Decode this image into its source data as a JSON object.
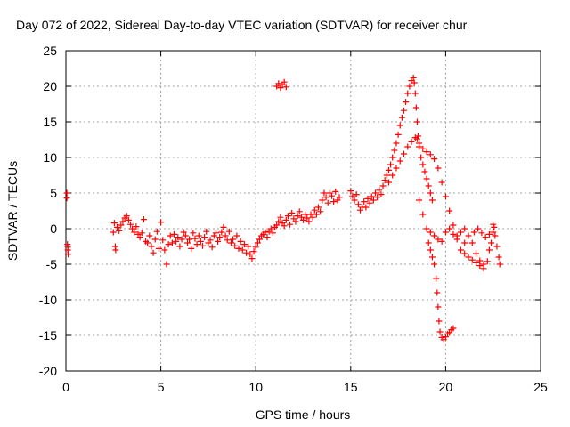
{
  "chart_data": {
    "type": "scatter",
    "title": "Day 072 of 2022, Sidereal Day-to-day VTEC variation (SDTVAR) for receiver chur",
    "xlabel": "GPS time / hours",
    "ylabel": "SDTVAR / TECUs",
    "xlim": [
      0,
      25
    ],
    "ylim": [
      -20,
      25
    ],
    "xticks": [
      0,
      5,
      10,
      15,
      20,
      25
    ],
    "yticks": [
      -20,
      -15,
      -10,
      -5,
      0,
      5,
      10,
      15,
      20,
      25
    ],
    "xtick_labels": [
      "0",
      "5",
      "10",
      "15",
      "20",
      "25"
    ],
    "ytick_labels": [
      "-20",
      "-15",
      "-10",
      "-5",
      "0",
      "5",
      "10",
      "15",
      "20",
      "25"
    ],
    "grid": true,
    "marker": "+",
    "color": "#ff0000",
    "series": [
      {
        "name": "SDTVAR",
        "points": [
          [
            0.05,
            5.0
          ],
          [
            0.05,
            4.3
          ],
          [
            0.08,
            -2.2
          ],
          [
            0.1,
            -3.0
          ],
          [
            0.12,
            -3.6
          ],
          [
            0.1,
            -2.6
          ],
          [
            2.5,
            -0.5
          ],
          [
            2.55,
            0.8
          ],
          [
            2.6,
            -2.5
          ],
          [
            2.62,
            -3.0
          ],
          [
            2.7,
            0.2
          ],
          [
            2.8,
            -0.3
          ],
          [
            2.9,
            0.5
          ],
          [
            3.0,
            1.0
          ],
          [
            3.1,
            1.5
          ],
          [
            3.2,
            1.8
          ],
          [
            3.3,
            1.2
          ],
          [
            3.4,
            0.6
          ],
          [
            3.5,
            0.0
          ],
          [
            3.6,
            -0.5
          ],
          [
            3.7,
            0.3
          ],
          [
            3.8,
            -0.8
          ],
          [
            3.9,
            -1.2
          ],
          [
            4.0,
            -0.6
          ],
          [
            4.1,
            1.3
          ],
          [
            4.2,
            -1.8
          ],
          [
            4.3,
            -2.0
          ],
          [
            4.4,
            -1.0
          ],
          [
            4.5,
            -2.5
          ],
          [
            4.6,
            -3.4
          ],
          [
            4.7,
            -1.5
          ],
          [
            4.8,
            -0.4
          ],
          [
            4.9,
            -2.8
          ],
          [
            5.0,
            0.9
          ],
          [
            5.1,
            -1.6
          ],
          [
            5.2,
            -3.0
          ],
          [
            5.3,
            -5.0
          ],
          [
            5.4,
            -2.2
          ],
          [
            5.5,
            -1.0
          ],
          [
            5.6,
            -2.0
          ],
          [
            5.7,
            -0.8
          ],
          [
            5.8,
            -1.8
          ],
          [
            5.9,
            -1.2
          ],
          [
            6.0,
            -2.5
          ],
          [
            6.1,
            -1.5
          ],
          [
            6.2,
            -0.5
          ],
          [
            6.3,
            -1.0
          ],
          [
            6.4,
            -2.0
          ],
          [
            6.5,
            -1.5
          ],
          [
            6.6,
            -2.8
          ],
          [
            6.7,
            -0.6
          ],
          [
            6.8,
            -1.4
          ],
          [
            6.9,
            -2.2
          ],
          [
            7.0,
            -1.0
          ],
          [
            7.1,
            -1.8
          ],
          [
            7.2,
            -2.4
          ],
          [
            7.3,
            -1.2
          ],
          [
            7.4,
            -0.4
          ],
          [
            7.5,
            -2.0
          ],
          [
            7.6,
            -1.6
          ],
          [
            7.7,
            -2.6
          ],
          [
            7.8,
            -1.0
          ],
          [
            7.9,
            -0.6
          ],
          [
            8.0,
            -1.8
          ],
          [
            8.1,
            -1.2
          ],
          [
            8.2,
            -0.5
          ],
          [
            8.3,
            0.2
          ],
          [
            8.4,
            -1.0
          ],
          [
            8.5,
            -1.6
          ],
          [
            8.6,
            -0.4
          ],
          [
            8.7,
            -2.0
          ],
          [
            8.8,
            -1.5
          ],
          [
            8.9,
            -2.4
          ],
          [
            9.0,
            -1.0
          ],
          [
            9.1,
            -2.8
          ],
          [
            9.2,
            -1.8
          ],
          [
            9.3,
            -3.0
          ],
          [
            9.4,
            -2.2
          ],
          [
            9.5,
            -3.4
          ],
          [
            9.6,
            -2.5
          ],
          [
            9.7,
            -3.6
          ],
          [
            9.8,
            -4.2
          ],
          [
            9.9,
            -3.2
          ],
          [
            10.0,
            -2.6
          ],
          [
            10.1,
            -2.0
          ],
          [
            10.2,
            -1.5
          ],
          [
            10.3,
            -1.0
          ],
          [
            10.4,
            -0.8
          ],
          [
            10.5,
            -0.5
          ],
          [
            10.6,
            -1.2
          ],
          [
            10.7,
            -0.4
          ],
          [
            10.8,
            0.0
          ],
          [
            10.9,
            -0.6
          ],
          [
            11.0,
            0.2
          ],
          [
            11.1,
            0.5
          ],
          [
            11.2,
            1.0
          ],
          [
            11.3,
            1.6
          ],
          [
            11.4,
            0.8
          ],
          [
            11.5,
            0.4
          ],
          [
            11.6,
            1.2
          ],
          [
            11.7,
            1.8
          ],
          [
            11.8,
            0.6
          ],
          [
            11.9,
            2.2
          ],
          [
            12.0,
            1.4
          ],
          [
            12.1,
            1.0
          ],
          [
            12.2,
            1.8
          ],
          [
            12.3,
            2.4
          ],
          [
            12.4,
            1.6
          ],
          [
            12.5,
            1.2
          ],
          [
            12.6,
            2.0
          ],
          [
            12.7,
            1.5
          ],
          [
            12.8,
            1.0
          ],
          [
            12.9,
            2.0
          ],
          [
            13.0,
            1.6
          ],
          [
            13.1,
            2.6
          ],
          [
            13.2,
            2.0
          ],
          [
            13.3,
            3.0
          ],
          [
            13.4,
            2.4
          ],
          [
            13.5,
            4.0
          ],
          [
            13.6,
            5.0
          ],
          [
            13.7,
            4.4
          ],
          [
            13.8,
            3.6
          ],
          [
            13.9,
            5.0
          ],
          [
            14.0,
            4.6
          ],
          [
            14.1,
            3.8
          ],
          [
            14.2,
            5.2
          ],
          [
            14.3,
            4.0
          ],
          [
            14.4,
            4.4
          ],
          [
            11.1,
            20.0
          ],
          [
            11.2,
            20.4
          ],
          [
            11.3,
            19.8
          ],
          [
            11.4,
            20.2
          ],
          [
            11.5,
            20.6
          ],
          [
            11.6,
            19.9
          ],
          [
            15.0,
            5.3
          ],
          [
            15.1,
            4.6
          ],
          [
            15.2,
            4.0
          ],
          [
            15.3,
            4.8
          ],
          [
            15.4,
            3.4
          ],
          [
            15.5,
            2.6
          ],
          [
            15.6,
            3.0
          ],
          [
            15.7,
            3.8
          ],
          [
            15.8,
            3.0
          ],
          [
            15.9,
            4.2
          ],
          [
            16.0,
            3.6
          ],
          [
            16.1,
            4.5
          ],
          [
            16.2,
            4.0
          ],
          [
            16.3,
            5.0
          ],
          [
            16.4,
            4.4
          ],
          [
            16.5,
            5.4
          ],
          [
            16.6,
            4.8
          ],
          [
            16.7,
            6.0
          ],
          [
            16.8,
            6.8
          ],
          [
            16.9,
            7.5
          ],
          [
            17.0,
            8.2
          ],
          [
            17.1,
            9.0
          ],
          [
            17.2,
            10.0
          ],
          [
            17.3,
            11.0
          ],
          [
            17.4,
            12.0
          ],
          [
            17.5,
            13.2
          ],
          [
            17.6,
            14.5
          ],
          [
            17.7,
            15.6
          ],
          [
            17.8,
            16.6
          ],
          [
            17.9,
            17.8
          ],
          [
            18.0,
            19.0
          ],
          [
            18.1,
            20.0
          ],
          [
            18.2,
            20.8
          ],
          [
            18.3,
            21.2
          ],
          [
            18.35,
            20.5
          ],
          [
            18.4,
            19.0
          ],
          [
            18.45,
            17.0
          ],
          [
            18.5,
            15.0
          ],
          [
            18.55,
            13.0
          ],
          [
            18.6,
            11.5
          ],
          [
            18.7,
            10.0
          ],
          [
            18.8,
            9.0
          ],
          [
            18.9,
            8.0
          ],
          [
            19.0,
            7.0
          ],
          [
            19.1,
            6.0
          ],
          [
            19.2,
            5.0
          ],
          [
            19.3,
            4.0
          ],
          [
            17.0,
            6.5
          ],
          [
            17.2,
            7.5
          ],
          [
            17.4,
            8.5
          ],
          [
            17.6,
            9.5
          ],
          [
            17.8,
            10.5
          ],
          [
            18.0,
            11.5
          ],
          [
            18.2,
            12.2
          ],
          [
            18.4,
            12.8
          ],
          [
            18.5,
            12.6
          ],
          [
            18.6,
            12.0
          ],
          [
            18.8,
            11.2
          ],
          [
            19.0,
            10.8
          ],
          [
            19.2,
            10.4
          ],
          [
            19.4,
            9.8
          ],
          [
            19.6,
            8.5
          ],
          [
            19.8,
            6.5
          ],
          [
            20.0,
            4.5
          ],
          [
            20.2,
            2.5
          ],
          [
            20.4,
            0.5
          ],
          [
            20.6,
            -1.5
          ],
          [
            20.8,
            -3.0
          ],
          [
            21.0,
            -2.0
          ],
          [
            18.6,
            4.0
          ],
          [
            18.8,
            2.0
          ],
          [
            19.0,
            0.0
          ],
          [
            19.1,
            -2.0
          ],
          [
            19.2,
            -3.0
          ],
          [
            19.3,
            -4.0
          ],
          [
            19.4,
            -5.0
          ],
          [
            19.5,
            -7.0
          ],
          [
            19.55,
            -9.0
          ],
          [
            19.6,
            -11.0
          ],
          [
            19.65,
            -13.0
          ],
          [
            19.7,
            -14.5
          ],
          [
            19.8,
            -15.3
          ],
          [
            19.9,
            -15.6
          ],
          [
            20.0,
            -15.2
          ],
          [
            20.1,
            -14.8
          ],
          [
            20.2,
            -14.6
          ],
          [
            20.3,
            -14.2
          ],
          [
            20.4,
            -14.0
          ],
          [
            19.2,
            -0.5
          ],
          [
            19.4,
            -1.0
          ],
          [
            19.6,
            -1.5
          ],
          [
            19.8,
            -1.8
          ],
          [
            20.0,
            -0.5
          ],
          [
            20.2,
            0.0
          ],
          [
            20.4,
            -0.8
          ],
          [
            20.6,
            -1.0
          ],
          [
            20.8,
            -0.5
          ],
          [
            21.0,
            0.0
          ],
          [
            21.2,
            -1.0
          ],
          [
            21.4,
            -2.0
          ],
          [
            21.6,
            -3.5
          ],
          [
            21.8,
            -4.5
          ],
          [
            22.0,
            -5.0
          ],
          [
            22.2,
            -4.6
          ],
          [
            22.3,
            -3.0
          ],
          [
            22.4,
            -2.0
          ],
          [
            22.5,
            -0.5
          ],
          [
            22.55,
            0.2
          ],
          [
            22.6,
            -1.0
          ],
          [
            22.7,
            -2.5
          ],
          [
            22.8,
            -4.0
          ],
          [
            22.85,
            -5.0
          ],
          [
            21.5,
            -0.5
          ],
          [
            21.7,
            0.0
          ],
          [
            21.9,
            -0.6
          ],
          [
            22.1,
            -1.2
          ],
          [
            22.3,
            -0.8
          ],
          [
            22.5,
            0.6
          ],
          [
            21.0,
            -3.5
          ],
          [
            21.2,
            -4.0
          ],
          [
            21.4,
            -4.4
          ],
          [
            21.6,
            -4.8
          ],
          [
            21.8,
            -5.2
          ],
          [
            22.0,
            -5.6
          ]
        ]
      }
    ]
  }
}
